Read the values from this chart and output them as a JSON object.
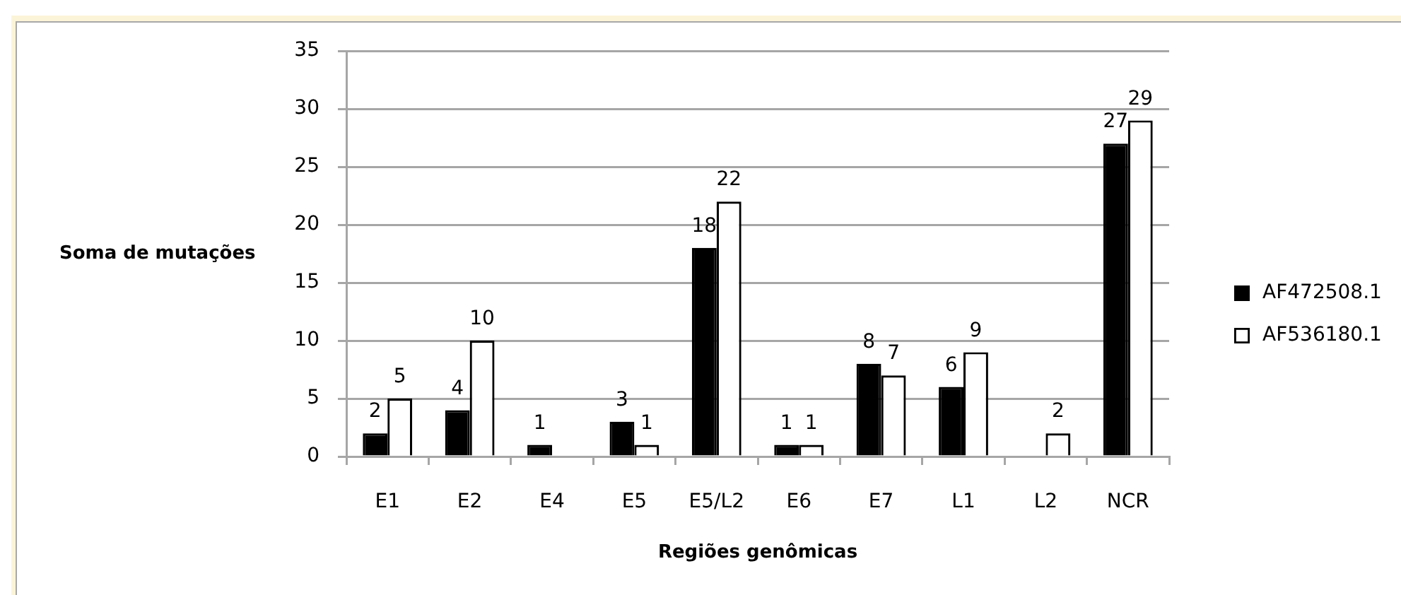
{
  "chart_data": {
    "type": "bar",
    "xlabel": "Regiões genômicas",
    "ylabel": "Soma de mutações",
    "categories": [
      "E1",
      "E2",
      "E4",
      "E5",
      "E5/L2",
      "E6",
      "E7",
      "L1",
      "L2",
      "NCR"
    ],
    "series": [
      {
        "name": "AF472508.1",
        "color": "#000000",
        "values": [
          2,
          4,
          1,
          3,
          18,
          1,
          8,
          6,
          null,
          27
        ]
      },
      {
        "name": "AF536180.1",
        "color": "#ffffff",
        "values": [
          5,
          10,
          null,
          1,
          22,
          1,
          7,
          9,
          2,
          29
        ]
      }
    ],
    "ylim": [
      0,
      35
    ],
    "yticks": [
      0,
      5,
      10,
      15,
      20,
      25,
      30,
      35
    ],
    "grid": "y",
    "legend": "right",
    "data_labels": true
  }
}
